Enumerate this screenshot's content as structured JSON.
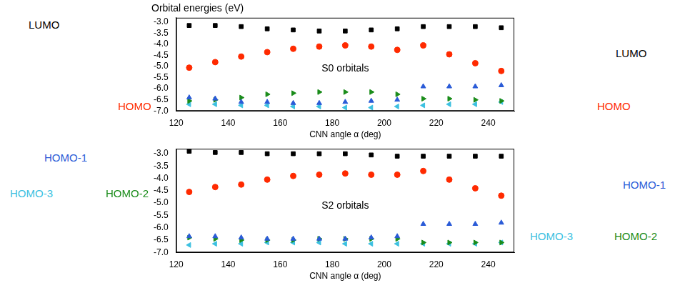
{
  "chart_data": [
    {
      "type": "scatter",
      "title": "Orbital energies (eV)",
      "x_label": "CNN angle α (deg)",
      "annotations": [
        "S0 orbitals"
      ],
      "grid": false,
      "legend": false,
      "xlim": [
        120,
        250
      ],
      "xticks": [
        120,
        140,
        160,
        180,
        200,
        220,
        240
      ],
      "ylim": [
        -7.0,
        -2.8
      ],
      "yticks": [
        {
          "value": -3.0,
          "label": "-3.0"
        },
        {
          "value": -3.5,
          "label": "-3.5"
        },
        {
          "value": -4.0,
          "label": "-4.0"
        },
        {
          "value": -4.5,
          "label": "-4.5"
        },
        {
          "value": -5.0,
          "label": "-5.0"
        },
        {
          "value": -5.5,
          "label": "-5.5"
        },
        {
          "value": -6.0,
          "label": "-6.0"
        },
        {
          "value": -6.5,
          "label": "-6.5"
        },
        {
          "value": -7.0,
          "label": "-7.0"
        }
      ],
      "x": [
        125,
        135,
        145,
        155,
        165,
        175,
        185,
        195,
        205,
        215,
        225,
        235,
        245
      ],
      "series": [
        {
          "name": "LUMO",
          "color": "#000000",
          "marker": "square",
          "values": [
            -3.15,
            -3.15,
            -3.2,
            -3.3,
            -3.35,
            -3.4,
            -3.4,
            -3.35,
            -3.3,
            -3.2,
            -3.2,
            -3.2,
            -3.25
          ]
        },
        {
          "name": "HOMO",
          "color": "#ff2a00",
          "marker": "circle",
          "values": [
            -5.05,
            -4.8,
            -4.55,
            -4.35,
            -4.2,
            -4.1,
            -4.05,
            -4.1,
            -4.25,
            -4.05,
            -4.45,
            -4.85,
            -5.2
          ]
        },
        {
          "name": "HOMO-1",
          "color": "#2a5bd7",
          "marker": "triangle-up",
          "values": [
            -6.4,
            -6.45,
            -6.6,
            -6.6,
            -6.65,
            -6.65,
            -6.6,
            -6.55,
            -6.5,
            -5.9,
            -5.9,
            -5.9,
            -5.85
          ]
        },
        {
          "name": "HOMO-2",
          "color": "#1a8c1a",
          "marker": "triangle-right",
          "values": [
            -6.55,
            -6.5,
            -6.4,
            -6.25,
            -6.2,
            -6.15,
            -6.15,
            -6.15,
            -6.25,
            -6.45,
            -6.45,
            -6.5,
            -6.55
          ]
        },
        {
          "name": "HOMO-3",
          "color": "#3cc0e0",
          "marker": "triangle-left",
          "values": [
            -6.7,
            -6.7,
            -6.75,
            -6.75,
            -6.8,
            -6.8,
            -6.85,
            -6.85,
            -6.8,
            -6.75,
            -6.7,
            -6.7,
            -6.6
          ]
        }
      ]
    },
    {
      "type": "scatter",
      "x_label": "CNN angle α (deg)",
      "annotations": [
        "S2 orbitals"
      ],
      "grid": false,
      "legend": false,
      "xlim": [
        120,
        250
      ],
      "xticks": [
        120,
        140,
        160,
        180,
        200,
        220,
        240
      ],
      "ylim": [
        -7.0,
        -2.8
      ],
      "yticks": [
        {
          "value": -3.0,
          "label": "-3.0"
        },
        {
          "value": -3.5,
          "label": "-3.5"
        },
        {
          "value": -4.0,
          "label": "-4.0"
        },
        {
          "value": -4.5,
          "label": "-4.5"
        },
        {
          "value": -5.0,
          "label": "-5.0"
        },
        {
          "value": -5.5,
          "label": "-5.5"
        },
        {
          "value": -6.0,
          "label": "-6.0"
        },
        {
          "value": -6.5,
          "label": "-6.5"
        },
        {
          "value": -7.0,
          "label": "-7.0"
        }
      ],
      "x": [
        125,
        135,
        145,
        155,
        165,
        175,
        185,
        195,
        205,
        215,
        225,
        235,
        245
      ],
      "series": [
        {
          "name": "LUMO",
          "color": "#000000",
          "marker": "square",
          "values": [
            -2.9,
            -2.95,
            -2.95,
            -3.0,
            -3.0,
            -3.0,
            -3.0,
            -3.05,
            -3.1,
            -3.1,
            -3.1,
            -3.1,
            -3.1
          ]
        },
        {
          "name": "HOMO",
          "color": "#ff2a00",
          "marker": "circle",
          "values": [
            -4.55,
            -4.35,
            -4.25,
            -4.05,
            -3.9,
            -3.85,
            -3.8,
            -3.85,
            -3.85,
            -3.7,
            -4.05,
            -4.4,
            -4.7
          ]
        },
        {
          "name": "HOMO-1",
          "color": "#2a5bd7",
          "marker": "triangle-up",
          "values": [
            -6.35,
            -6.35,
            -6.4,
            -6.45,
            -6.45,
            -6.45,
            -6.45,
            -6.4,
            -6.35,
            -5.85,
            -5.85,
            -5.85,
            -5.8
          ]
        },
        {
          "name": "HOMO-2",
          "color": "#1a8c1a",
          "marker": "triangle-right",
          "values": [
            -6.4,
            -6.45,
            -6.5,
            -6.5,
            -6.5,
            -6.45,
            -6.45,
            -6.45,
            -6.45,
            -6.6,
            -6.6,
            -6.6,
            -6.6
          ]
        },
        {
          "name": "HOMO-3",
          "color": "#3cc0e0",
          "marker": "triangle-left",
          "values": [
            -6.7,
            -6.65,
            -6.65,
            -6.6,
            -6.6,
            -6.6,
            -6.65,
            -6.65,
            -6.65,
            -6.65,
            -6.65,
            -6.65,
            -6.6
          ]
        }
      ]
    }
  ]
}
